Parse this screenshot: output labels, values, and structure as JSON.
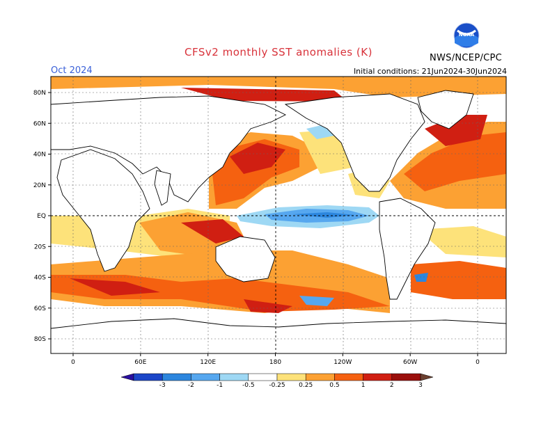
{
  "header": {
    "title": "CFSv2 monthly SST anomalies (K)",
    "valid_month": "Oct 2024",
    "initial_conditions": "Initial conditions: 21Jun2024-30Jun2024",
    "org": "NWS/NCEP/CPC",
    "logo_text": "NOAA"
  },
  "axes": {
    "lat_labels": [
      "80N",
      "60N",
      "40N",
      "20N",
      "EQ",
      "20S",
      "40S",
      "60S",
      "80S"
    ],
    "lat_values": [
      80,
      60,
      40,
      20,
      0,
      -20,
      -40,
      -60,
      -80
    ],
    "lon_labels": [
      "0",
      "60E",
      "120E",
      "180",
      "120W",
      "60W",
      "0"
    ],
    "lon_values": [
      0,
      60,
      120,
      180,
      240,
      300,
      360
    ]
  },
  "colorbar": {
    "levels": [
      "-3",
      "-2",
      "-1",
      "-0.5",
      "-0.25",
      "0.25",
      "0.5",
      "1",
      "2",
      "3"
    ],
    "colors": [
      "#2a0fa0",
      "#1c46c8",
      "#2c86de",
      "#56a7ef",
      "#9ed8f4",
      "#ffffff",
      "#fde27a",
      "#fca133",
      "#f56110",
      "#d01f12",
      "#9a0f0c",
      "#6b4030"
    ]
  },
  "colors": {
    "strong_warm": "#d01f12",
    "warm": "#f56110",
    "mild_warm": "#fca133",
    "weak_warm": "#fde27a",
    "weak_cool": "#9ed8f4",
    "cool": "#56a7ef",
    "strong_cool": "#2c86de"
  }
}
